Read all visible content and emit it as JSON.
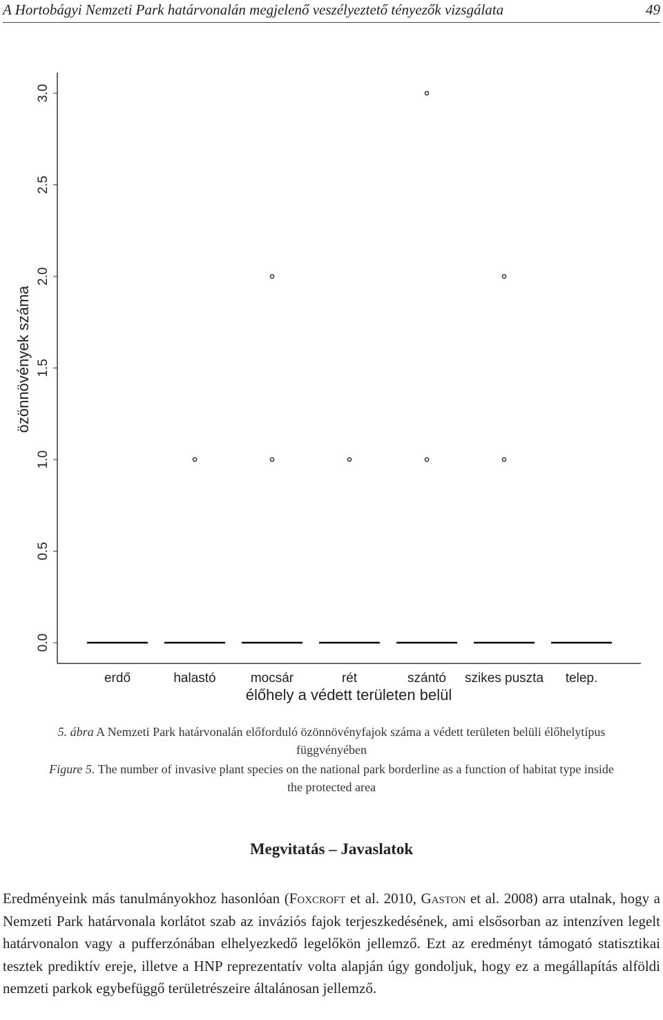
{
  "header": {
    "title": "A Hortobágyi Nemzeti Park határvonalán megjelenő veszélyeztető tényezők vizsgálata",
    "page": "49"
  },
  "chart_data": {
    "type": "box",
    "y_label": "özönnövények száma",
    "x_label": "élőhely a védett területen belül",
    "categories": [
      "erdő",
      "halastó",
      "mocsár",
      "rét",
      "szántó",
      "szikes puszta",
      "telep."
    ],
    "medians": [
      0,
      0,
      0,
      0,
      0,
      0,
      0
    ],
    "outliers": [
      [],
      [
        1
      ],
      [
        1,
        2
      ],
      [
        1
      ],
      [
        1,
        3
      ],
      [
        1,
        2
      ],
      []
    ],
    "ylim": [
      -0.113,
      3.113
    ],
    "yticks": [
      {
        "value": 0,
        "label": "0.0"
      },
      0.5,
      {
        "value": 1,
        "label": "1.0"
      },
      1.5,
      {
        "value": 2,
        "label": "2.0"
      },
      2.5,
      {
        "value": 3,
        "label": "3.0"
      }
    ],
    "color": "#000000"
  },
  "caption": {
    "hu_label": "5. ábra",
    "hu_text": "A Nemzeti Park határvonalán előforduló özönnövényfajok száma a védett területen belüli élőhelytípus függvényében",
    "en_label": "Figure 5.",
    "en_text": "The number of invasive plant species on the national park borderline as a function of habitat type inside the protected area"
  },
  "section": {
    "heading": "Megvitatás – Javaslatok",
    "paragraph": [
      "Eredményeink más tanulmányokhoz hasonlóan (",
      "Foxcroft",
      " et al. 2010, ",
      "Gaston",
      " et al. 2008) arra utalnak, hogy a Nemzeti Park határvonala korlátot szab az inváziós fajok terjeszkedésének, ami elsősorban az intenzíven legelt határvonalon vagy a pufferzónában elhelyezkedő legelőkön jellemző. Ezt az eredményt támogató statisztikai tesztek prediktív ereje, illetve a HNP reprezentatív volta alapján úgy gondoljuk, hogy ez a megállapítás alföldi nemzeti parkok egybefüggő területrészeire általánosan jellemző."
    ]
  }
}
